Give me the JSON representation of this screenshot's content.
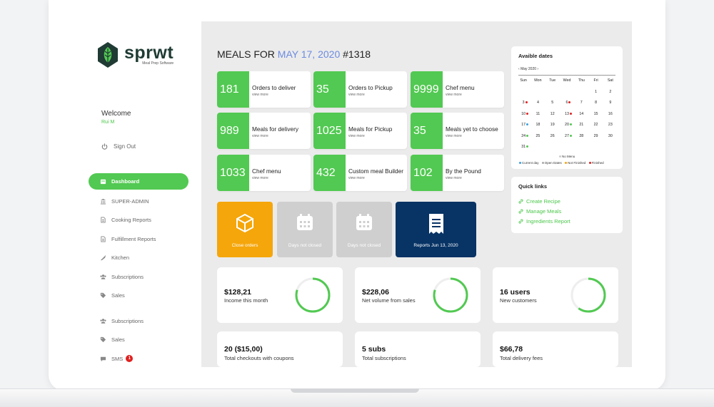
{
  "brand": {
    "name": "sprwt",
    "tagline": "Meal Prep Software"
  },
  "user": {
    "welcome": "Welcome",
    "name": "Rui M",
    "sign_out": "Sign Out"
  },
  "nav": [
    {
      "label": "Dashboard",
      "icon": "calendar-icon",
      "active": true
    },
    {
      "label": "SUPER-ADMIN",
      "icon": "bank-icon"
    },
    {
      "label": "Cooking Reports",
      "icon": "document-icon"
    },
    {
      "label": "Fulfillment Reports",
      "icon": "document-icon"
    },
    {
      "label": "Kitchen",
      "icon": "knife-icon"
    },
    {
      "label": "Subscriptions",
      "icon": "users-icon"
    },
    {
      "label": "Sales",
      "icon": "tag-icon"
    },
    {
      "label": "Subscriptions",
      "icon": "users-icon"
    },
    {
      "label": "Sales",
      "icon": "tag-icon"
    },
    {
      "label": "SMS",
      "icon": "chat-icon",
      "badge": "1"
    }
  ],
  "heading": {
    "prefix": "MEALS FOR",
    "date": "MAY 17, 2020",
    "number": "#1318"
  },
  "view_more": "view more",
  "stats": [
    {
      "value": "181",
      "label": "Orders to deliver"
    },
    {
      "value": "35",
      "label": "Orders to Pickup"
    },
    {
      "value": "9999",
      "label": "Chef menu"
    },
    {
      "value": "989",
      "label": "Meals for delivery"
    },
    {
      "value": "1025",
      "label": "Meals for Pickup"
    },
    {
      "value": "35",
      "label": "Meals yet to choose"
    },
    {
      "value": "1033",
      "label": "Chef menu"
    },
    {
      "value": "432",
      "label": "Custom meal Builder"
    },
    {
      "value": "102",
      "label": "By the Pound"
    }
  ],
  "tiles": [
    {
      "label": "Close orders",
      "color": "#f5a60a"
    },
    {
      "label": "Days not closed",
      "color": "#cfcfcf"
    },
    {
      "label": "Days not closed",
      "color": "#cfcfcf"
    },
    {
      "label": "Reports Jun 13, 2020",
      "color": "#073365"
    }
  ],
  "metrics": [
    {
      "value": "$128,21",
      "label": "Income this month",
      "progress": 0.8
    },
    {
      "value": "$228,06",
      "label": "Net volume from sales",
      "progress": 0.8
    },
    {
      "value": "16 users",
      "label": "New customers",
      "progress": 0.6
    }
  ],
  "totals": [
    {
      "value": "20 ($15,00)",
      "label": "Total checkouts with coupons"
    },
    {
      "value": "5 subs",
      "label": "Total subscriptions"
    },
    {
      "value": "$66,78",
      "label": "Total delivery fees"
    }
  ],
  "calendar": {
    "title": "Avaible dates",
    "prev": "‹",
    "next": "›",
    "month": "May 2020",
    "weekdays": [
      "Sun",
      "Mon",
      "Tue",
      "Wed",
      "Thu",
      "Fri",
      "Sat"
    ],
    "days": [
      "",
      "",
      "",
      "",
      "",
      "1",
      "2",
      "3",
      "4",
      "5",
      "6",
      "7",
      "8",
      "9",
      "10",
      "11",
      "12",
      "13",
      "14",
      "15",
      "16",
      "17",
      "18",
      "19",
      "20",
      "21",
      "22",
      "23",
      "24",
      "25",
      "26",
      "27",
      "28",
      "29",
      "30",
      "31",
      "",
      "",
      "",
      "",
      "",
      ""
    ],
    "dots": {
      "3": "#e02020",
      "6": "#e02020",
      "10": "#e02020",
      "13": "#e02020",
      "17": "#3aa0e0",
      "20": "#52c952",
      "24": "#52c952",
      "27": "#52c952",
      "31": "#52c952"
    },
    "legend_top": "No Menu",
    "legend": [
      {
        "label": "Current day",
        "color": "#3aa0e0"
      },
      {
        "label": "Open Dates",
        "color": "#aaaaaa"
      },
      {
        "label": "Not Finished",
        "color": "#f5a60a"
      },
      {
        "label": "Finished",
        "color": "#e02020"
      }
    ]
  },
  "quick_links": {
    "title": "Quick links",
    "items": [
      "Create Recipe",
      "Manage Meals",
      "Ingredients Report"
    ]
  },
  "colors": {
    "accent": "#52c952",
    "link": "#6c8be0",
    "navy": "#073365",
    "orange": "#f5a60a"
  }
}
